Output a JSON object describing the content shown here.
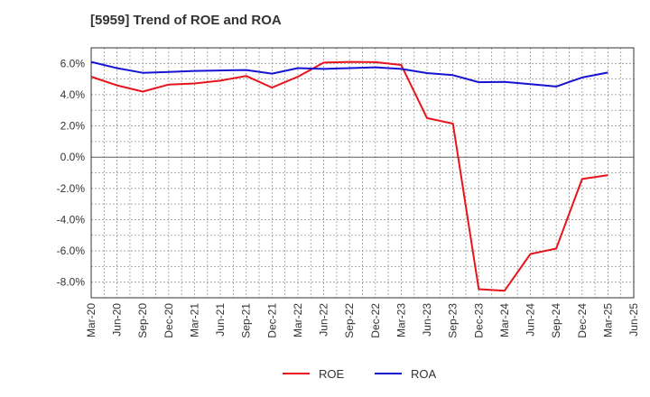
{
  "chart_data": {
    "type": "line",
    "title": "[5959]  Trend of ROE and ROA",
    "xlabel": "",
    "ylabel": "",
    "x": [
      "Mar-20",
      "Jun-20",
      "Sep-20",
      "Dec-20",
      "Mar-21",
      "Jun-21",
      "Sep-21",
      "Dec-21",
      "Mar-22",
      "Jun-22",
      "Sep-22",
      "Dec-22",
      "Mar-23",
      "Jun-23",
      "Sep-23",
      "Dec-23",
      "Mar-24",
      "Jun-24",
      "Sep-24",
      "Dec-24",
      "Mar-25",
      "Jun-25"
    ],
    "ylim": [
      -9.0,
      7.0
    ],
    "yticks": [
      -8.0,
      -6.0,
      -4.0,
      -2.0,
      0.0,
      2.0,
      4.0,
      6.0
    ],
    "ytick_labels": [
      "-8.0%",
      "-6.0%",
      "-4.0%",
      "-2.0%",
      "0.0%",
      "2.0%",
      "4.0%",
      "6.0%"
    ],
    "grid": true,
    "legend_position": "bottom",
    "series": [
      {
        "name": "ROE",
        "color": "#e8141b",
        "values": [
          5.15,
          4.6,
          4.2,
          4.65,
          4.72,
          4.9,
          5.2,
          4.45,
          5.15,
          6.05,
          6.1,
          6.08,
          5.9,
          2.5,
          2.15,
          -8.45,
          -8.55,
          -6.2,
          -5.85,
          -1.4,
          -1.15,
          null
        ]
      },
      {
        "name": "ROA",
        "color": "#1414d2",
        "values": [
          6.1,
          5.7,
          5.4,
          5.45,
          5.52,
          5.55,
          5.58,
          5.35,
          5.7,
          5.65,
          5.7,
          5.75,
          5.65,
          5.38,
          5.25,
          4.8,
          4.82,
          4.67,
          4.52,
          5.1,
          5.42,
          null
        ]
      }
    ]
  }
}
